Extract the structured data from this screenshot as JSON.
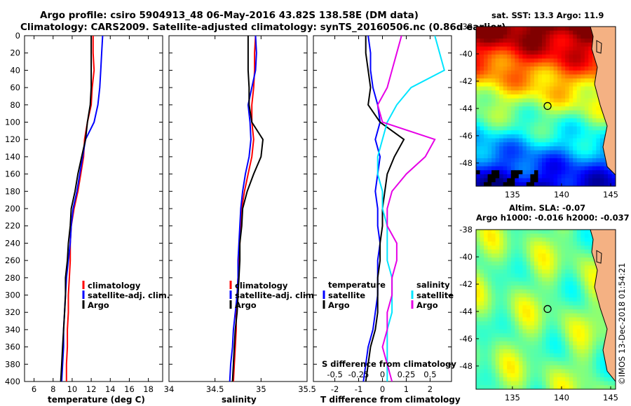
{
  "header": {
    "line1": "Argo profile: csiro 5904913_48 06-May-2016 43.82S 138.58E (DM data)",
    "line2": "Climatology: CARS2009. Satellite-adjusted climatology: synTS_20160506.nc (0.86d earlier)"
  },
  "colors": {
    "climatology": "#ff0000",
    "satellite": "#0000ff",
    "argo": "#000000",
    "salinity_satellite": "#00e5ff",
    "salinity_argo": "#e600e6",
    "land": "#f4b183"
  },
  "depth_axis": {
    "ticks": [
      "0",
      "20",
      "40",
      "60",
      "80",
      "100",
      "120",
      "140",
      "160",
      "180",
      "200",
      "220",
      "240",
      "260",
      "280",
      "300",
      "320",
      "340",
      "360",
      "380",
      "400"
    ]
  },
  "chart_data": [
    {
      "type": "line",
      "panel": "temperature",
      "xlabel": "temperature (deg C)",
      "ylabel": "depth",
      "xlim": [
        5,
        19.5
      ],
      "ylim": [
        400,
        0
      ],
      "xticks": [
        "6",
        "8",
        "10",
        "12",
        "14",
        "16",
        "18"
      ],
      "legend": [
        "climatology",
        "satellite-adj. clim.",
        "Argo"
      ],
      "series": [
        {
          "name": "climatology",
          "color": "red",
          "x": [
            12.2,
            12.2,
            12.3,
            12.1,
            12.0,
            11.6,
            11.3,
            11.2,
            10.9,
            10.6,
            10.2,
            9.9,
            9.8,
            9.8,
            9.7,
            9.6,
            9.6,
            9.5,
            9.5,
            9.4,
            9.4
          ],
          "y": [
            0,
            20,
            40,
            60,
            80,
            100,
            120,
            140,
            160,
            180,
            200,
            220,
            240,
            260,
            280,
            300,
            320,
            340,
            360,
            380,
            400
          ]
        },
        {
          "name": "satellite-adj. clim.",
          "color": "blue",
          "x": [
            13.2,
            13.1,
            13.0,
            12.9,
            12.7,
            12.3,
            11.4,
            11.1,
            10.8,
            10.5,
            10.1,
            9.9,
            9.8,
            9.6,
            9.4,
            9.3,
            9.2,
            9.1,
            9.1,
            9.0,
            8.9
          ],
          "y": [
            0,
            20,
            40,
            60,
            80,
            100,
            120,
            140,
            160,
            180,
            200,
            220,
            240,
            260,
            280,
            300,
            320,
            340,
            360,
            380,
            400
          ]
        },
        {
          "name": "Argo",
          "color": "black",
          "x": [
            12.0,
            12.0,
            12.0,
            12.0,
            11.9,
            11.6,
            11.4,
            11.0,
            10.6,
            10.3,
            9.9,
            9.8,
            9.6,
            9.5,
            9.3,
            9.3,
            9.2,
            9.1,
            9.0,
            8.9,
            8.8
          ],
          "y": [
            0,
            20,
            40,
            60,
            80,
            100,
            120,
            140,
            160,
            180,
            200,
            220,
            240,
            260,
            280,
            300,
            320,
            340,
            360,
            380,
            400
          ]
        }
      ]
    },
    {
      "type": "line",
      "panel": "salinity",
      "xlabel": "salinity",
      "ylabel": "depth",
      "xlim": [
        34,
        35.5
      ],
      "ylim": [
        400,
        0
      ],
      "xticks": [
        "34",
        "34.5",
        "35",
        "35.5"
      ],
      "legend": [
        "climatology",
        "satellite-adj. clim.",
        "Argo"
      ],
      "series": [
        {
          "name": "climatology",
          "color": "red",
          "x": [
            34.94,
            34.93,
            34.93,
            34.92,
            34.9,
            34.9,
            34.92,
            34.9,
            34.86,
            34.82,
            34.79,
            34.78,
            34.77,
            34.76,
            34.75,
            34.74,
            34.73,
            34.73,
            34.72,
            34.71,
            34.7
          ],
          "y": [
            0,
            20,
            40,
            60,
            80,
            100,
            120,
            140,
            160,
            180,
            200,
            220,
            240,
            260,
            280,
            300,
            320,
            340,
            360,
            380,
            400
          ]
        },
        {
          "name": "satellite-adj. clim.",
          "color": "blue",
          "x": [
            34.94,
            34.95,
            34.94,
            34.9,
            34.86,
            34.88,
            34.89,
            34.87,
            34.83,
            34.8,
            34.78,
            34.77,
            34.76,
            34.75,
            34.75,
            34.74,
            34.72,
            34.7,
            34.69,
            34.67,
            34.66
          ],
          "y": [
            0,
            20,
            40,
            60,
            80,
            100,
            120,
            140,
            160,
            180,
            200,
            220,
            240,
            260,
            280,
            300,
            320,
            340,
            360,
            380,
            400
          ]
        },
        {
          "name": "Argo",
          "color": "black",
          "x": [
            34.86,
            34.86,
            34.86,
            34.87,
            34.87,
            34.9,
            35.02,
            35.0,
            34.92,
            34.85,
            34.8,
            34.79,
            34.77,
            34.77,
            34.76,
            34.75,
            34.74,
            34.72,
            34.71,
            34.7,
            34.69
          ],
          "y": [
            0,
            20,
            40,
            60,
            80,
            100,
            120,
            140,
            160,
            180,
            200,
            220,
            240,
            260,
            280,
            300,
            320,
            340,
            360,
            380,
            400
          ]
        }
      ]
    },
    {
      "type": "line",
      "panel": "difference",
      "xlabel": "T difference from climatology",
      "secondary_xlabel": "S difference from climatology",
      "ylabel": "depth",
      "xlim": [
        -2.9,
        2.9
      ],
      "ylim": [
        400,
        0
      ],
      "xticks": [
        "-2",
        "-1",
        "0",
        "1",
        "2"
      ],
      "secondary_xticks": [
        "-0.5",
        "-0.25",
        "0",
        "0.25",
        "0.5"
      ],
      "legend_temperature_title": "temperature",
      "legend_temperature": [
        "satellite",
        "Argo"
      ],
      "legend_salinity_title": "salinity",
      "legend_salinity": [
        "satellite",
        "Argo"
      ],
      "series": [
        {
          "name": "temperature satellite",
          "color": "blue",
          "x": [
            -0.6,
            -0.5,
            -0.5,
            -0.4,
            -0.2,
            -0.1,
            -0.3,
            -0.1,
            -0.2,
            -0.3,
            -0.2,
            -0.2,
            -0.1,
            -0.2,
            -0.2,
            -0.2,
            -0.3,
            -0.4,
            -0.6,
            -0.7,
            -0.8
          ],
          "y": [
            0,
            20,
            40,
            60,
            80,
            100,
            120,
            140,
            160,
            180,
            200,
            220,
            240,
            260,
            280,
            300,
            320,
            340,
            360,
            380,
            400
          ]
        },
        {
          "name": "temperature Argo",
          "color": "black",
          "x": [
            -0.7,
            -0.7,
            -0.6,
            -0.5,
            -0.6,
            -0.1,
            0.9,
            0.5,
            0.2,
            0.1,
            0.0,
            0.0,
            -0.1,
            -0.1,
            -0.2,
            -0.2,
            -0.2,
            -0.3,
            -0.5,
            -0.6,
            -0.7
          ],
          "y": [
            0,
            20,
            40,
            60,
            80,
            100,
            120,
            140,
            160,
            180,
            200,
            220,
            240,
            260,
            280,
            300,
            320,
            340,
            360,
            380,
            400
          ]
        },
        {
          "name": "salinity satellite",
          "color": "cyan",
          "x": [
            0.55,
            0.6,
            0.65,
            0.3,
            0.15,
            0.05,
            0.0,
            -0.05,
            -0.05,
            0.0,
            0.0,
            0.05,
            0.05,
            0.05,
            0.1,
            0.1,
            0.1,
            0.05,
            0.05,
            0.05,
            0.05
          ],
          "y": [
            0,
            20,
            40,
            60,
            80,
            100,
            120,
            140,
            160,
            180,
            200,
            220,
            240,
            260,
            280,
            300,
            320,
            340,
            360,
            380,
            400
          ]
        },
        {
          "name": "salinity Argo",
          "color": "magenta",
          "x": [
            0.2,
            0.15,
            0.1,
            0.05,
            -0.05,
            0.0,
            0.55,
            0.45,
            0.25,
            0.1,
            0.05,
            0.05,
            0.15,
            0.15,
            0.1,
            0.1,
            0.05,
            0.05,
            0.0,
            0.05,
            0.1
          ],
          "y": [
            0,
            20,
            40,
            60,
            80,
            100,
            120,
            140,
            160,
            180,
            200,
            220,
            240,
            260,
            280,
            300,
            320,
            340,
            360,
            380,
            400
          ]
        }
      ]
    },
    {
      "type": "heatmap",
      "panel": "sst-map",
      "title": "sat. SST: 13.3 Argo: 11.9",
      "xticks": [
        "135",
        "140",
        "145"
      ],
      "yticks": [
        "-38",
        "-40",
        "-42",
        "-44",
        "-46",
        "-48"
      ],
      "xlim": [
        131.3,
        145.5
      ],
      "ylim": [
        -49.7,
        -38
      ],
      "marker": {
        "lon": 138.58,
        "lat": -43.82
      }
    },
    {
      "type": "heatmap",
      "panel": "sla-map",
      "title": "Altim. SLA: -0.07",
      "subtitle": "Argo h1000: -0.016 h2000: -0.037",
      "xticks": [
        "135",
        "140",
        "145"
      ],
      "yticks": [
        "-38",
        "-40",
        "-42",
        "-44",
        "-46",
        "-48"
      ],
      "xlim": [
        131.3,
        145.5
      ],
      "ylim": [
        -49.7,
        -38
      ],
      "marker": {
        "lon": 138.58,
        "lat": -43.82
      }
    }
  ],
  "watermark": "©IMOS 13-Dec-2018 01:54:21"
}
